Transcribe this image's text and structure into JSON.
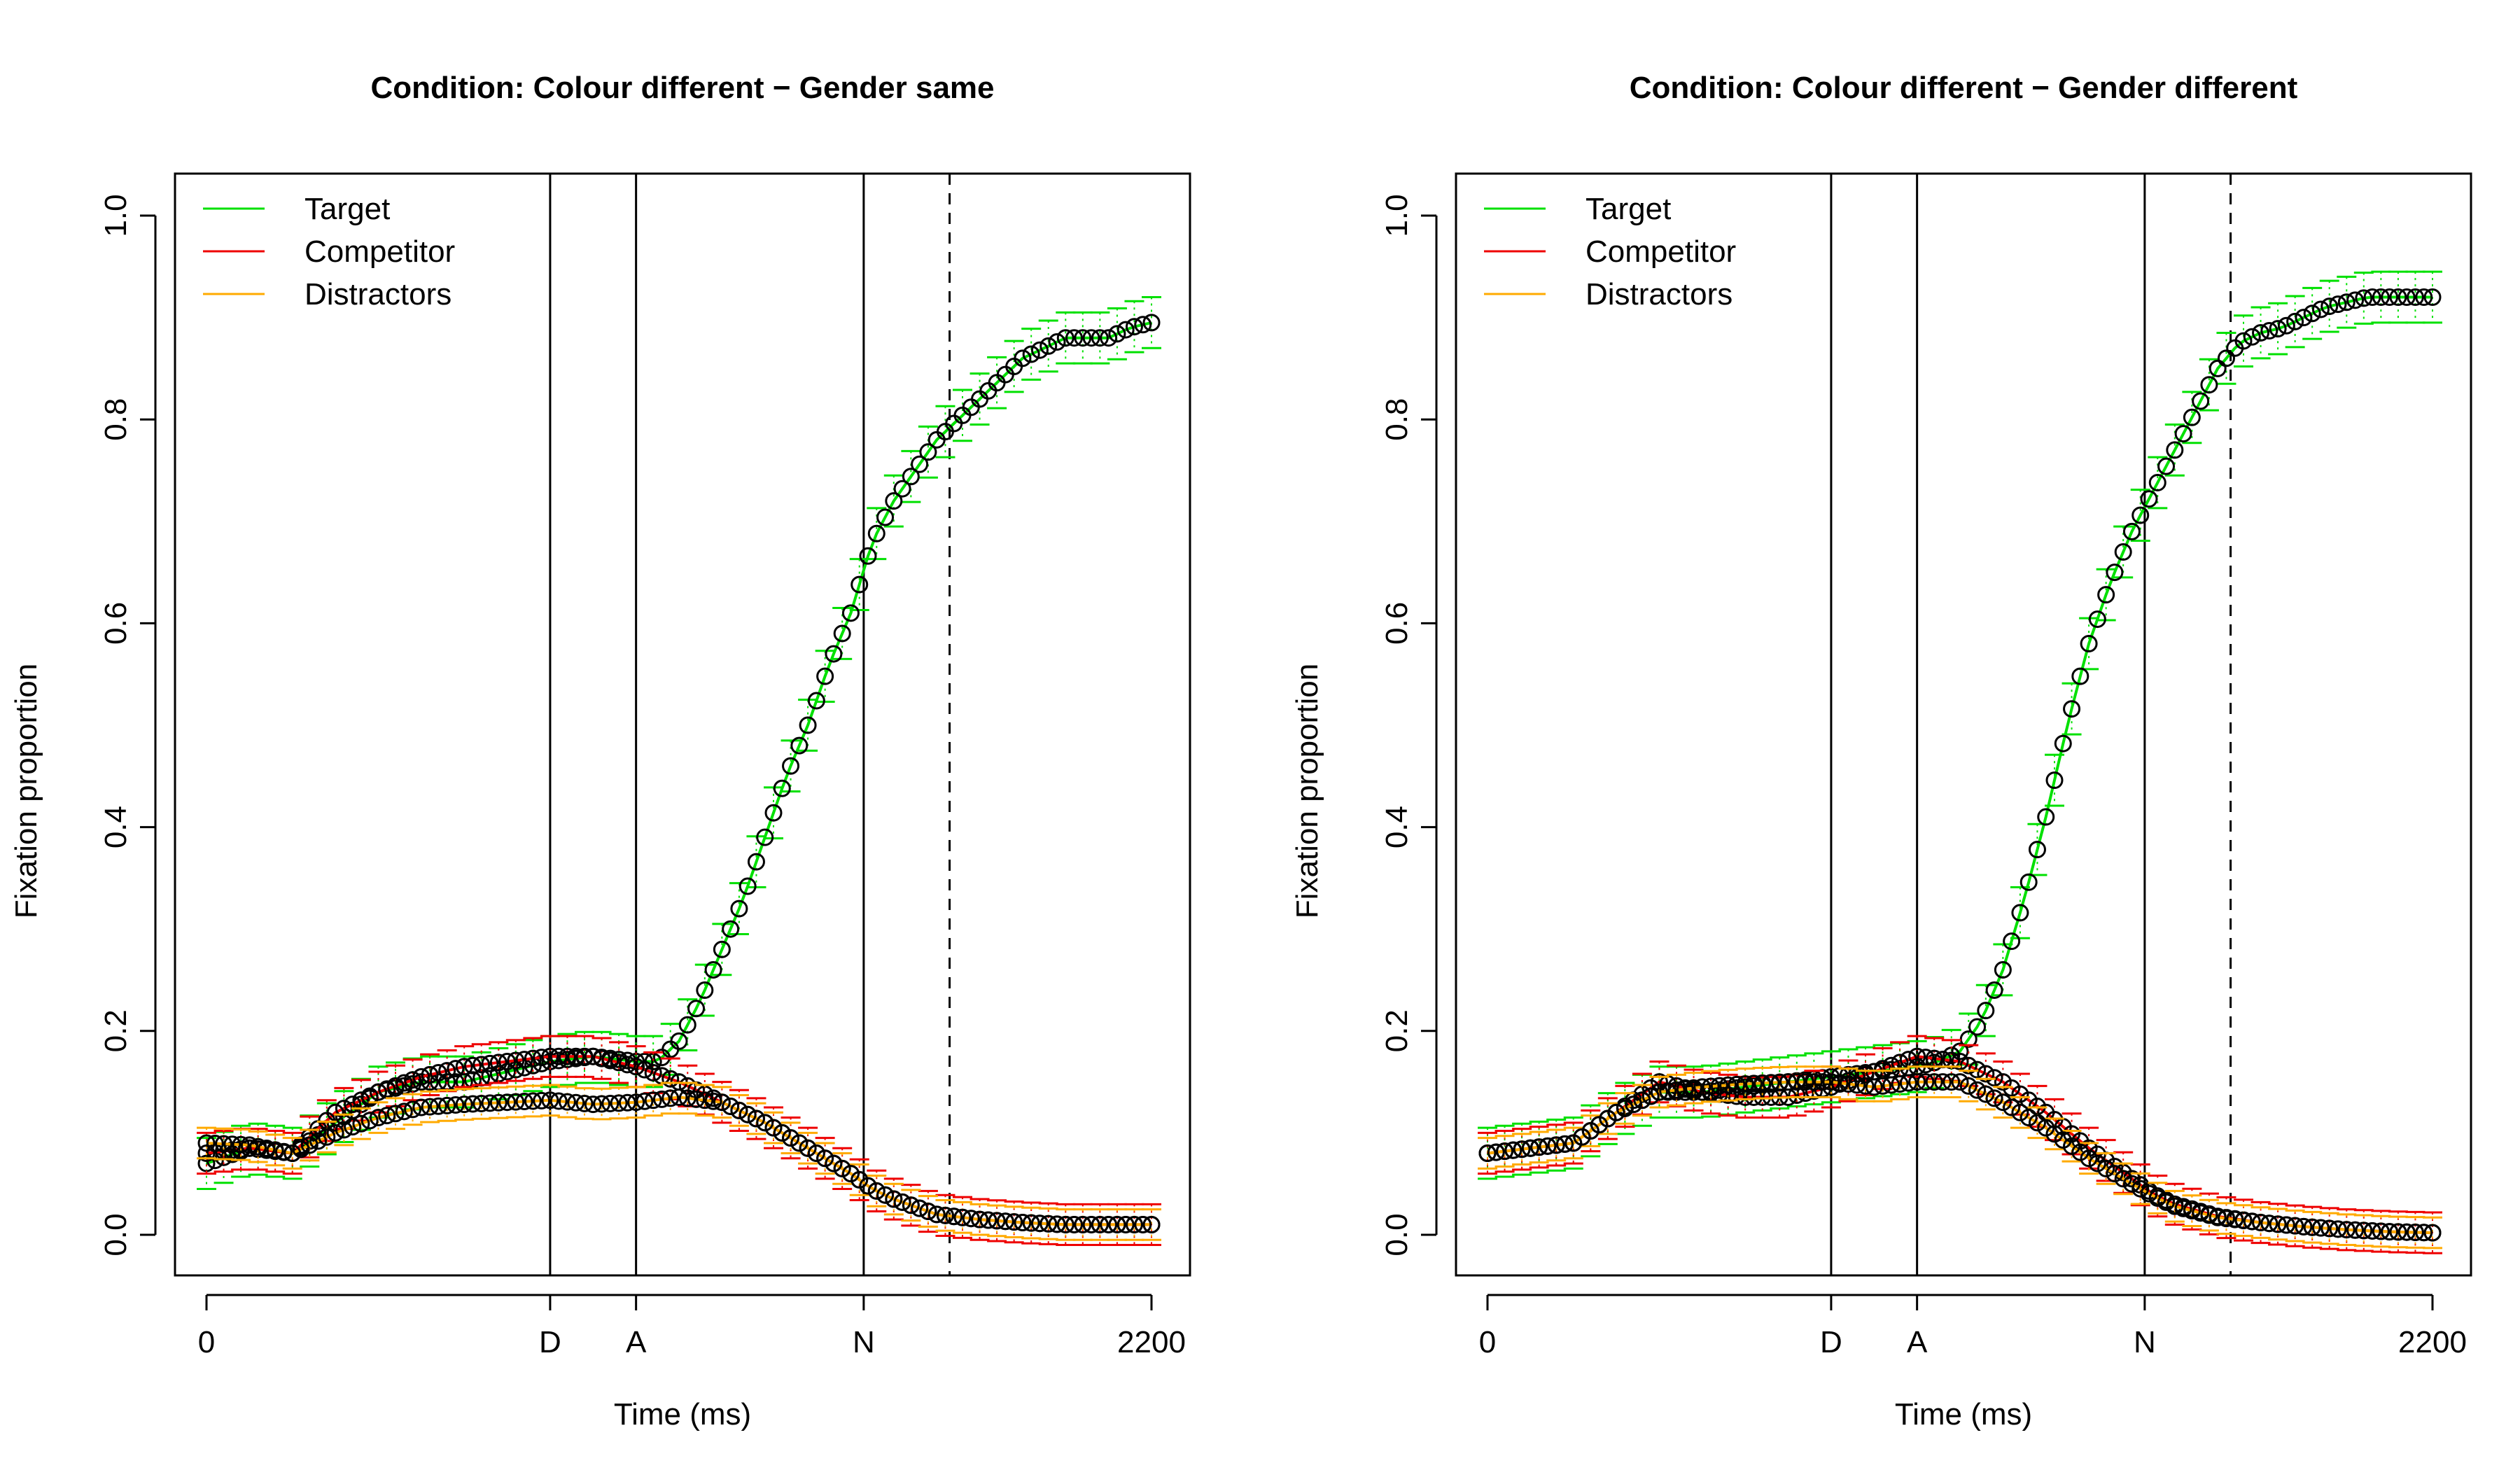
{
  "chart_data": [
    {
      "type": "line",
      "title": "Condition: Colour different − Gender same",
      "xlabel": "Time (ms)",
      "ylabel": "Fixation proportion",
      "xlim": [
        0,
        2200
      ],
      "ylim": [
        0.0,
        1.0
      ],
      "x_ticks": [
        {
          "value": 0,
          "label": "0"
        },
        {
          "value": 800,
          "label": "D"
        },
        {
          "value": 1000,
          "label": "A"
        },
        {
          "value": 1530,
          "label": "N"
        },
        {
          "value": 2200,
          "label": "2200"
        }
      ],
      "y_ticks": [
        0.0,
        0.2,
        0.4,
        0.6,
        0.8,
        1.0
      ],
      "vlines_solid": [
        800,
        1000,
        1530
      ],
      "vlines_dashed": [
        1730
      ],
      "legend": {
        "position": "top-left",
        "entries": [
          "Target",
          "Competitor",
          "Distractors"
        ]
      },
      "series": [
        {
          "name": "Target",
          "color": "#00e000",
          "ci": 0.025,
          "x": [
            0,
            100,
            200,
            300,
            400,
            500,
            600,
            700,
            800,
            900,
            1000,
            1050,
            1100,
            1150,
            1200,
            1250,
            1300,
            1350,
            1400,
            1450,
            1500,
            1550,
            1600,
            1650,
            1700,
            1750,
            1800,
            1850,
            1900,
            1950,
            2000,
            2050,
            2100,
            2150,
            2200
          ],
          "values": [
            0.07,
            0.085,
            0.08,
            0.11,
            0.14,
            0.15,
            0.15,
            0.16,
            0.17,
            0.175,
            0.17,
            0.17,
            0.19,
            0.23,
            0.28,
            0.33,
            0.39,
            0.45,
            0.5,
            0.56,
            0.61,
            0.68,
            0.72,
            0.75,
            0.78,
            0.8,
            0.82,
            0.84,
            0.86,
            0.87,
            0.88,
            0.88,
            0.88,
            0.89,
            0.895
          ]
        },
        {
          "name": "Competitor",
          "color": "#ee0000",
          "ci": 0.02,
          "x": [
            0,
            100,
            200,
            300,
            400,
            500,
            600,
            700,
            800,
            900,
            1000,
            1100,
            1200,
            1300,
            1400,
            1500,
            1550,
            1600,
            1700,
            1800,
            1900,
            2000,
            2100,
            2200
          ],
          "values": [
            0.08,
            0.085,
            0.08,
            0.12,
            0.14,
            0.155,
            0.165,
            0.17,
            0.175,
            0.175,
            0.165,
            0.15,
            0.13,
            0.11,
            0.085,
            0.06,
            0.045,
            0.035,
            0.02,
            0.015,
            0.012,
            0.01,
            0.01,
            0.01
          ]
        },
        {
          "name": "Distractors",
          "color": "#ffaa00",
          "ci": 0.015,
          "x": [
            0,
            100,
            200,
            300,
            400,
            500,
            600,
            700,
            800,
            900,
            1000,
            1100,
            1200,
            1300,
            1400,
            1500,
            1550,
            1600,
            1700,
            1800,
            1900,
            2000,
            2100,
            2200
          ],
          "values": [
            0.09,
            0.088,
            0.08,
            0.1,
            0.115,
            0.125,
            0.128,
            0.13,
            0.132,
            0.128,
            0.13,
            0.135,
            0.13,
            0.11,
            0.085,
            0.06,
            0.045,
            0.035,
            0.02,
            0.015,
            0.012,
            0.01,
            0.01,
            0.01
          ]
        }
      ]
    },
    {
      "type": "line",
      "title": "Condition: Colour different − Gender different",
      "xlabel": "Time (ms)",
      "ylabel": "Fixation proportion",
      "xlim": [
        0,
        2200
      ],
      "ylim": [
        0.0,
        1.0
      ],
      "x_ticks": [
        {
          "value": 0,
          "label": "0"
        },
        {
          "value": 800,
          "label": "D"
        },
        {
          "value": 1000,
          "label": "A"
        },
        {
          "value": 1530,
          "label": "N"
        },
        {
          "value": 2200,
          "label": "2200"
        }
      ],
      "y_ticks": [
        0.0,
        0.2,
        0.4,
        0.6,
        0.8,
        1.0
      ],
      "vlines_solid": [
        800,
        1000,
        1530
      ],
      "vlines_dashed": [
        1730
      ],
      "legend": {
        "position": "top-left",
        "entries": [
          "Target",
          "Competitor",
          "Distractors"
        ]
      },
      "series": [
        {
          "name": "Target",
          "color": "#00e000",
          "ci": 0.025,
          "x": [
            0,
            100,
            200,
            300,
            400,
            500,
            600,
            700,
            800,
            900,
            1000,
            1050,
            1100,
            1150,
            1200,
            1250,
            1300,
            1350,
            1400,
            1450,
            1500,
            1550,
            1600,
            1650,
            1700,
            1750,
            1800,
            1850,
            1900,
            1950,
            2000,
            2050,
            2100,
            2150,
            2200
          ],
          "values": [
            0.08,
            0.085,
            0.09,
            0.12,
            0.14,
            0.14,
            0.145,
            0.15,
            0.155,
            0.16,
            0.165,
            0.17,
            0.18,
            0.21,
            0.26,
            0.33,
            0.41,
            0.5,
            0.58,
            0.64,
            0.69,
            0.73,
            0.77,
            0.81,
            0.85,
            0.875,
            0.885,
            0.89,
            0.9,
            0.91,
            0.915,
            0.92,
            0.92,
            0.92,
            0.92
          ]
        },
        {
          "name": "Competitor",
          "color": "#ee0000",
          "ci": 0.02,
          "x": [
            0,
            100,
            200,
            300,
            400,
            500,
            600,
            700,
            800,
            900,
            1000,
            1100,
            1200,
            1300,
            1400,
            1500,
            1550,
            1600,
            1700,
            1800,
            1900,
            2000,
            2100,
            2200
          ],
          "values": [
            0.08,
            0.085,
            0.09,
            0.12,
            0.15,
            0.14,
            0.135,
            0.135,
            0.145,
            0.16,
            0.175,
            0.17,
            0.15,
            0.12,
            0.085,
            0.055,
            0.04,
            0.03,
            0.018,
            0.012,
            0.008,
            0.005,
            0.003,
            0.002
          ]
        },
        {
          "name": "Distractors",
          "color": "#ffaa00",
          "ci": 0.015,
          "x": [
            0,
            100,
            200,
            300,
            400,
            500,
            600,
            700,
            800,
            900,
            1000,
            1100,
            1200,
            1300,
            1400,
            1500,
            1550,
            1600,
            1700,
            1800,
            1900,
            2000,
            2100,
            2200
          ],
          "values": [
            0.08,
            0.085,
            0.09,
            0.12,
            0.14,
            0.145,
            0.148,
            0.15,
            0.15,
            0.145,
            0.15,
            0.15,
            0.13,
            0.105,
            0.075,
            0.05,
            0.038,
            0.028,
            0.017,
            0.012,
            0.008,
            0.005,
            0.003,
            0.002
          ]
        }
      ]
    }
  ]
}
